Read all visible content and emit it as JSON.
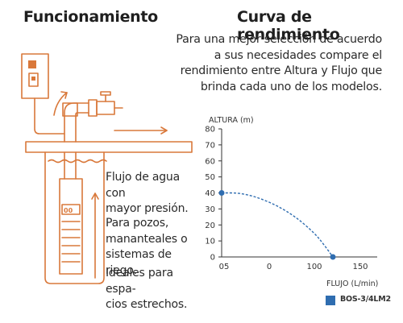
{
  "left_panel": {
    "title": "Funcionamiento",
    "flow_text": "Flujo de agua con\nmayor presión.",
    "uses_text": "Para pozos,\nmananteales o\nsistemas de riego.",
    "small_text": "Ideales para espa-\ncios estrechos.",
    "pump_display": "00"
  },
  "right_panel": {
    "title": "Curva de rendimiento",
    "intro": "Para una mejor selección de acuerdo a sus necesidades compare el rendimiento entre Altura y Flujo que brinda cada uno de los modelos."
  },
  "colors": {
    "accent": "#d9783a",
    "series": "#2f6db0",
    "axis": "#333333"
  },
  "chart_data": {
    "type": "line",
    "xlabel": "FLUJO (L/min)",
    "ylabel": "ALTURA (m)",
    "x_tick_labels": [
      "05",
      "0",
      "100",
      "150"
    ],
    "y_ticks": [
      0,
      10,
      20,
      30,
      40,
      50,
      60,
      70,
      80
    ],
    "ylim": [
      0,
      80
    ],
    "grid": false,
    "legend_position": "bottom-right",
    "series": [
      {
        "name": "BOS-3/4LM2",
        "color": "#2f6db0",
        "points": [
          [
            0,
            40
          ],
          [
            20,
            40
          ],
          [
            40,
            37
          ],
          [
            60,
            32
          ],
          [
            80,
            25
          ],
          [
            100,
            15
          ],
          [
            110,
            8
          ],
          [
            120,
            0
          ]
        ]
      }
    ]
  }
}
